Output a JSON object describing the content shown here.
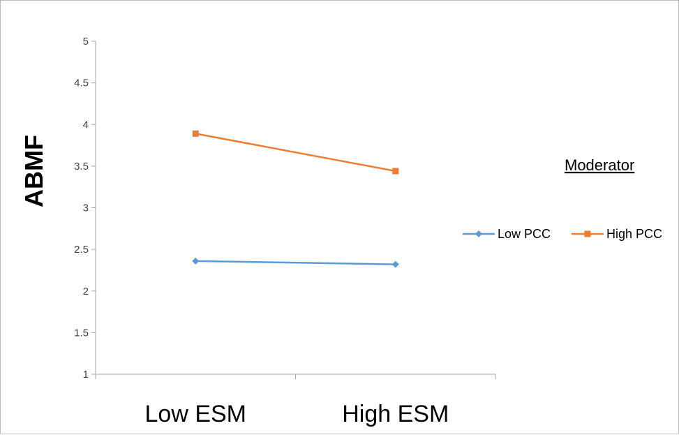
{
  "chart_data": {
    "type": "line",
    "categories": [
      "Low ESM",
      "High ESM"
    ],
    "series": [
      {
        "name": "Low PCC",
        "values": [
          2.36,
          2.32
        ],
        "color": "#5b9bd5",
        "marker": "diamond"
      },
      {
        "name": "High PCC",
        "values": [
          3.89,
          3.44
        ],
        "color": "#ed7d31",
        "marker": "square"
      }
    ],
    "title": "",
    "xlabel": "",
    "ylabel": "ABMF",
    "ylim": [
      1,
      5
    ],
    "yticks": [
      "1",
      "1.5",
      "2",
      "2.5",
      "3",
      "3.5",
      "4",
      "4.5",
      "5"
    ],
    "grid": false,
    "legend": {
      "title": "Moderator",
      "placement": "right"
    },
    "axis_color": "#a6a6a6"
  }
}
